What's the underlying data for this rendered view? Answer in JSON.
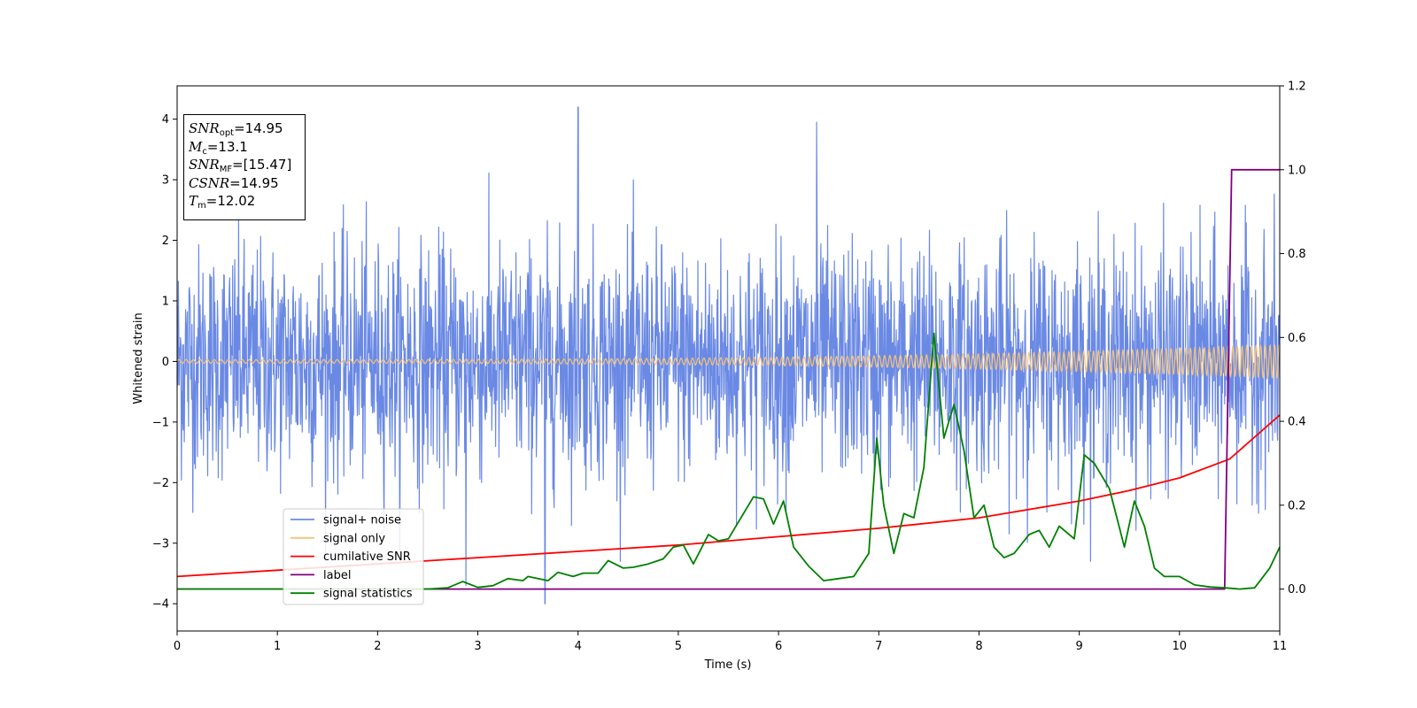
{
  "chart_data": {
    "type": "line",
    "xlabel": "Time (s)",
    "ylabel": "Whitened strain",
    "xlim": [
      0,
      11
    ],
    "ylim_left": [
      -4.45,
      4.55
    ],
    "ylim_right": [
      -0.1,
      1.2
    ],
    "x_ticks": [
      "0",
      "1",
      "2",
      "3",
      "4",
      "5",
      "6",
      "7",
      "8",
      "9",
      "10",
      "11"
    ],
    "y_left_ticks": [
      "−4",
      "−3",
      "−2",
      "−1",
      "0",
      "1",
      "2",
      "3",
      "4"
    ],
    "y_right_ticks": [
      "0.0",
      "0.2",
      "0.4",
      "0.6",
      "0.8",
      "1.0",
      "1.2"
    ],
    "legend_position": "lower-left",
    "series": [
      {
        "name": "signal+ noise",
        "color": "#6a89e4",
        "axis": "left",
        "description_values": {
          "approx_range": [
            -4.0,
            4.2
          ],
          "spike_peaks": [
            [
              4.0,
              4.2
            ],
            [
              6.38,
              3.95
            ],
            [
              3.67,
              -4.0
            ],
            [
              2.88,
              -3.7
            ]
          ]
        }
      },
      {
        "name": "signal only",
        "color": "#f5c37a",
        "axis": "left",
        "description_values": {
          "amplitude_start": 0.03,
          "amplitude_end": 0.28,
          "center": 0.0
        }
      },
      {
        "name": "cumilative SNR",
        "color": "#ff0000",
        "axis": "right",
        "points": [
          [
            0,
            0.03
          ],
          [
            1,
            0.045
          ],
          [
            2,
            0.06
          ],
          [
            3,
            0.075
          ],
          [
            4,
            0.09
          ],
          [
            5,
            0.105
          ],
          [
            6,
            0.125
          ],
          [
            7,
            0.145
          ],
          [
            8,
            0.17
          ],
          [
            9,
            0.21
          ],
          [
            9.5,
            0.235
          ],
          [
            10,
            0.265
          ],
          [
            10.5,
            0.31
          ],
          [
            11,
            0.415
          ]
        ]
      },
      {
        "name": "label",
        "color": "#800080",
        "axis": "right",
        "points": [
          [
            0,
            0.0
          ],
          [
            10.45,
            0.0
          ],
          [
            10.52,
            1.0
          ],
          [
            11,
            1.0
          ]
        ]
      },
      {
        "name": "signal statistics",
        "color": "#008000",
        "axis": "right",
        "points": [
          [
            0,
            0.0
          ],
          [
            1.0,
            0.0
          ],
          [
            2.0,
            0.0
          ],
          [
            2.5,
            0.0
          ],
          [
            2.7,
            0.003
          ],
          [
            2.85,
            0.018
          ],
          [
            3.0,
            0.004
          ],
          [
            3.15,
            0.008
          ],
          [
            3.3,
            0.025
          ],
          [
            3.45,
            0.02
          ],
          [
            3.5,
            0.03
          ],
          [
            3.7,
            0.02
          ],
          [
            3.8,
            0.04
          ],
          [
            3.95,
            0.03
          ],
          [
            4.05,
            0.038
          ],
          [
            4.2,
            0.038
          ],
          [
            4.3,
            0.068
          ],
          [
            4.45,
            0.05
          ],
          [
            4.55,
            0.052
          ],
          [
            4.7,
            0.06
          ],
          [
            4.85,
            0.072
          ],
          [
            4.95,
            0.1
          ],
          [
            5.05,
            0.105
          ],
          [
            5.15,
            0.06
          ],
          [
            5.3,
            0.13
          ],
          [
            5.4,
            0.115
          ],
          [
            5.5,
            0.12
          ],
          [
            5.6,
            0.16
          ],
          [
            5.75,
            0.22
          ],
          [
            5.85,
            0.215
          ],
          [
            5.95,
            0.155
          ],
          [
            6.05,
            0.21
          ],
          [
            6.15,
            0.1
          ],
          [
            6.3,
            0.055
          ],
          [
            6.45,
            0.02
          ],
          [
            6.6,
            0.025
          ],
          [
            6.75,
            0.03
          ],
          [
            6.9,
            0.085
          ],
          [
            6.98,
            0.36
          ],
          [
            7.05,
            0.2
          ],
          [
            7.15,
            0.085
          ],
          [
            7.25,
            0.18
          ],
          [
            7.35,
            0.17
          ],
          [
            7.45,
            0.29
          ],
          [
            7.55,
            0.61
          ],
          [
            7.65,
            0.36
          ],
          [
            7.75,
            0.44
          ],
          [
            7.85,
            0.33
          ],
          [
            7.95,
            0.17
          ],
          [
            8.05,
            0.2
          ],
          [
            8.15,
            0.1
          ],
          [
            8.25,
            0.075
          ],
          [
            8.35,
            0.085
          ],
          [
            8.5,
            0.13
          ],
          [
            8.6,
            0.14
          ],
          [
            8.7,
            0.1
          ],
          [
            8.8,
            0.15
          ],
          [
            8.95,
            0.12
          ],
          [
            9.05,
            0.32
          ],
          [
            9.15,
            0.3
          ],
          [
            9.3,
            0.24
          ],
          [
            9.45,
            0.1
          ],
          [
            9.55,
            0.21
          ],
          [
            9.65,
            0.15
          ],
          [
            9.75,
            0.05
          ],
          [
            9.85,
            0.03
          ],
          [
            10.0,
            0.03
          ],
          [
            10.15,
            0.01
          ],
          [
            10.3,
            0.005
          ],
          [
            10.45,
            0.003
          ],
          [
            10.6,
            0.0
          ],
          [
            10.75,
            0.003
          ],
          [
            10.9,
            0.05
          ],
          [
            11.0,
            0.1
          ]
        ]
      }
    ]
  },
  "info_box": {
    "line1": {
      "sym": "SNR",
      "sub": "opt",
      "rest": "=14.95"
    },
    "line2": {
      "sym": "M",
      "sub": "c",
      "rest": "=13.1"
    },
    "line3": {
      "sym": "SNR",
      "sub": "MF",
      "rest": "=[15.47]"
    },
    "line4": {
      "sym": "CSNR",
      "sub": "",
      "rest": "=14.95"
    },
    "line5": {
      "sym": "T",
      "sub": "m",
      "rest": "=12.02"
    }
  }
}
